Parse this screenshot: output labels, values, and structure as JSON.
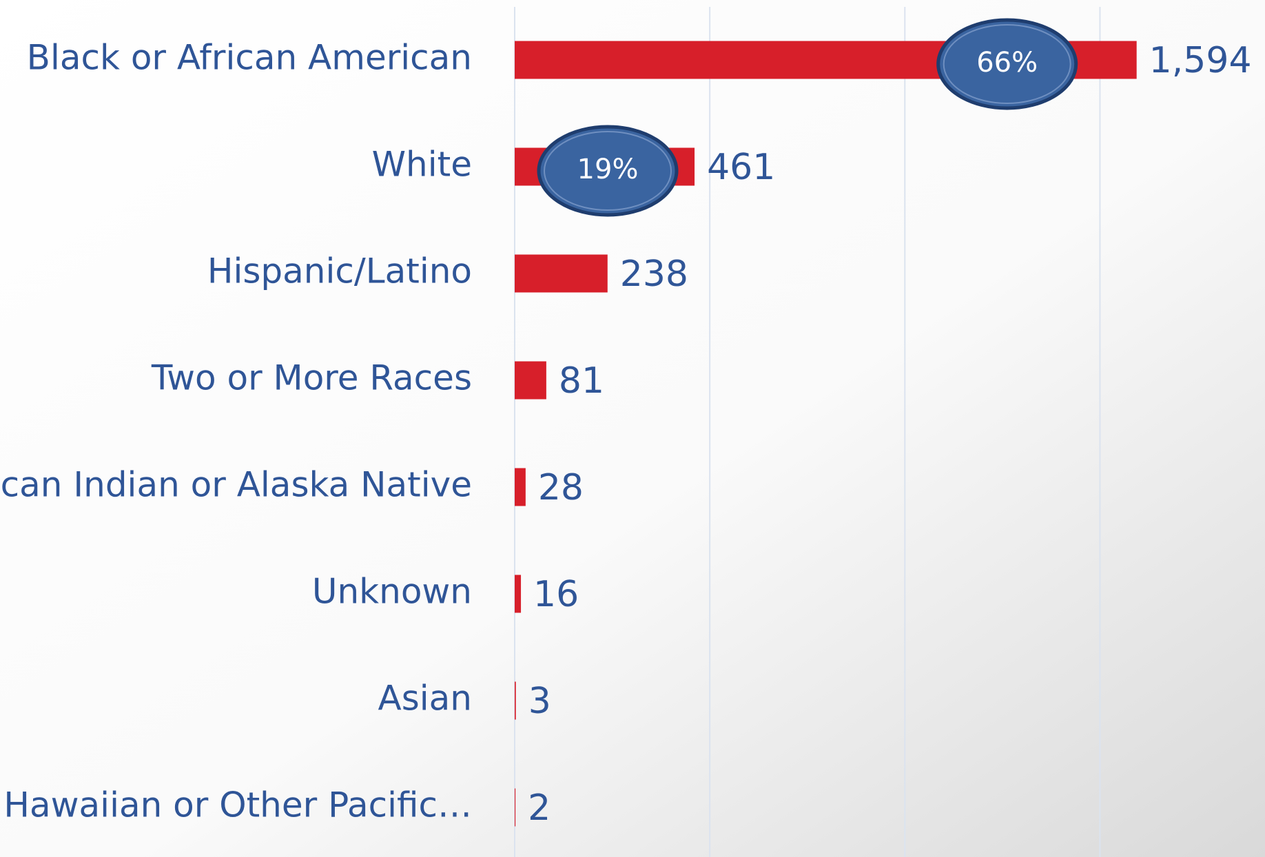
{
  "chart_data": {
    "type": "bar",
    "orientation": "horizontal",
    "categories": [
      "Black or African American",
      "White",
      "Hispanic/Latino",
      "Two or More Races",
      "American Indian or Alaska Native",
      "Unknown",
      "Asian",
      "Native Hawaiian or Other Pacific…"
    ],
    "values": [
      1594,
      461,
      238,
      81,
      28,
      16,
      3,
      2
    ],
    "value_labels": [
      "1,594",
      "461",
      "238",
      "81",
      "28",
      "16",
      "3",
      "2"
    ],
    "color": "#d71f2a",
    "xlim": [
      0,
      1923
    ],
    "xticks": [
      0,
      500,
      1000,
      1500
    ],
    "grid": true,
    "annotations": [
      {
        "category": "Black or African American",
        "text": "66%"
      },
      {
        "category": "White",
        "text": "19%"
      }
    ]
  }
}
